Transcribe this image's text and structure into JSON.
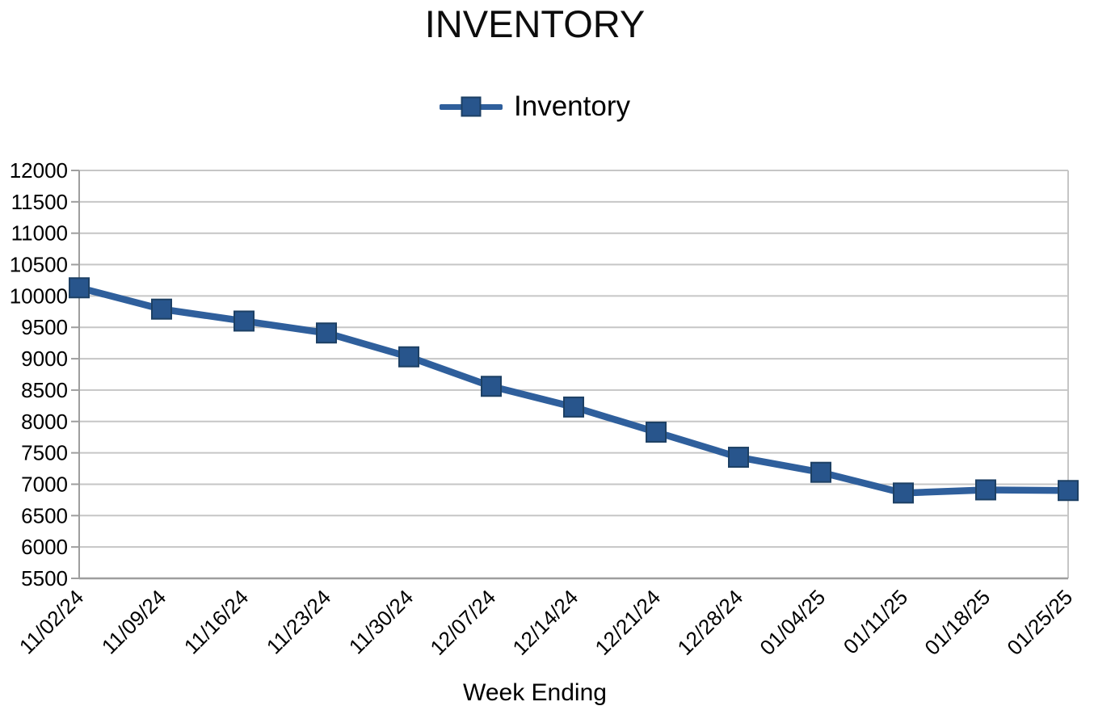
{
  "chart_data": {
    "type": "line",
    "title": "INVENTORY",
    "xlabel": "Week Ending",
    "ylabel": "",
    "legend_position": "top-center",
    "grid": "horizontal",
    "categories": [
      "11/02/24",
      "11/09/24",
      "11/16/24",
      "11/23/24",
      "11/30/24",
      "12/07/24",
      "12/14/24",
      "12/21/24",
      "12/28/24",
      "01/04/25",
      "01/11/25",
      "01/18/25",
      "01/25/25"
    ],
    "series": [
      {
        "name": "Inventory",
        "values": [
          10130,
          9790,
          9600,
          9410,
          9030,
          8560,
          8230,
          7830,
          7430,
          7190,
          6860,
          6910,
          6900
        ]
      }
    ],
    "ylim": [
      5500,
      12000
    ],
    "yticks": [
      5500,
      6000,
      6500,
      7000,
      7500,
      8000,
      8500,
      9000,
      9500,
      10000,
      10500,
      11000,
      11500,
      12000
    ],
    "colors": {
      "line": "#2F5F9C",
      "marker_fill": "#28558C",
      "marker_border": "#1D4064",
      "gridline": "#c6c6c6",
      "axis": "#9e9e9e",
      "text": "#000000"
    }
  }
}
